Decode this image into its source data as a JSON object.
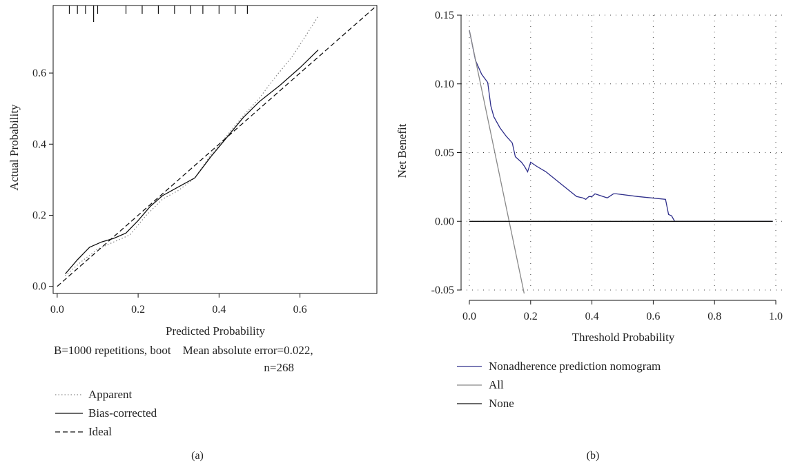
{
  "chart_data": [
    {
      "type": "line",
      "panel_label": "(a)",
      "xlabel": "Predicted Probability",
      "ylabel": "Actual Probability",
      "xlim": [
        -0.01,
        0.79
      ],
      "ylim": [
        -0.02,
        0.79
      ],
      "xticks": [
        0.0,
        0.2,
        0.4,
        0.6
      ],
      "xtick_labels": [
        "0.0",
        "0.2",
        "0.4",
        "0.6"
      ],
      "yticks": [
        0.0,
        0.2,
        0.4,
        0.6
      ],
      "ytick_labels": [
        "0.0",
        "0.2",
        "0.4",
        "0.6"
      ],
      "grid": false,
      "caption_line1": "B=1000 repetitions, boot    Mean absolute error=0.022,",
      "caption_line2": "n=268",
      "rug_x": [
        0.03,
        0.05,
        0.07,
        0.09,
        0.1,
        0.17,
        0.21,
        0.25,
        0.29,
        0.33,
        0.36,
        0.4,
        0.44,
        0.47
      ],
      "series": [
        {
          "name": "Apparent",
          "style": "dotted",
          "color": "#888888",
          "x": [
            0.02,
            0.06,
            0.1,
            0.14,
            0.18,
            0.22,
            0.26,
            0.3,
            0.34,
            0.38,
            0.42,
            0.46,
            0.5,
            0.54,
            0.58,
            0.62,
            0.645
          ],
          "y": [
            0.03,
            0.07,
            0.105,
            0.125,
            0.145,
            0.2,
            0.245,
            0.27,
            0.305,
            0.37,
            0.425,
            0.48,
            0.53,
            0.59,
            0.645,
            0.715,
            0.76
          ]
        },
        {
          "name": "Bias-corrected",
          "style": "solid",
          "color": "#111111",
          "x": [
            0.02,
            0.05,
            0.08,
            0.11,
            0.14,
            0.17,
            0.2,
            0.23,
            0.26,
            0.3,
            0.34,
            0.38,
            0.42,
            0.46,
            0.5,
            0.55,
            0.6,
            0.645
          ],
          "y": [
            0.035,
            0.075,
            0.11,
            0.125,
            0.135,
            0.15,
            0.185,
            0.225,
            0.255,
            0.28,
            0.305,
            0.365,
            0.42,
            0.475,
            0.52,
            0.565,
            0.615,
            0.665
          ]
        },
        {
          "name": "Ideal",
          "style": "dashed",
          "color": "#111111",
          "x": [
            0.0,
            0.79
          ],
          "y": [
            0.0,
            0.79
          ]
        }
      ],
      "legend": [
        "Apparent",
        "Bias-corrected",
        "Ideal"
      ],
      "legend_position": "bottom-left"
    },
    {
      "type": "line",
      "panel_label": "(b)",
      "xlabel": "Threshold Probability",
      "ylabel": "Net Benefit",
      "xlim": [
        -0.02,
        1.02
      ],
      "ylim": [
        -0.05,
        0.15
      ],
      "xticks": [
        0.0,
        0.2,
        0.4,
        0.6,
        0.8,
        1.0
      ],
      "xtick_labels": [
        "0.0",
        "0.2",
        "0.4",
        "0.6",
        "0.8",
        "1.0"
      ],
      "yticks": [
        -0.05,
        0.0,
        0.05,
        0.1,
        0.15
      ],
      "ytick_labels": [
        "-0.05",
        "0.00",
        "0.05",
        "0.10",
        "0.15"
      ],
      "grid": true,
      "series": [
        {
          "name": "Nonadherence prediction nomogram",
          "style": "solid",
          "color": "#2e2e8a",
          "x": [
            0.0,
            0.02,
            0.04,
            0.05,
            0.06,
            0.07,
            0.08,
            0.1,
            0.12,
            0.14,
            0.15,
            0.17,
            0.18,
            0.19,
            0.2,
            0.22,
            0.25,
            0.3,
            0.35,
            0.37,
            0.38,
            0.39,
            0.4,
            0.41,
            0.45,
            0.47,
            0.48,
            0.55,
            0.64,
            0.65,
            0.66,
            0.67,
            0.7,
            0.99
          ],
          "y": [
            0.139,
            0.117,
            0.107,
            0.104,
            0.101,
            0.084,
            0.076,
            0.068,
            0.062,
            0.057,
            0.047,
            0.043,
            0.04,
            0.036,
            0.043,
            0.04,
            0.036,
            0.027,
            0.018,
            0.017,
            0.016,
            0.018,
            0.018,
            0.02,
            0.017,
            0.02,
            0.02,
            0.018,
            0.016,
            0.005,
            0.004,
            0.0,
            0.0,
            0.0
          ]
        },
        {
          "name": "All",
          "style": "solid",
          "color": "#888888",
          "x": [
            0.0,
            0.184
          ],
          "y": [
            0.139,
            -0.058
          ]
        },
        {
          "name": "None",
          "style": "solid",
          "color": "#111111",
          "x": [
            0.0,
            0.99
          ],
          "y": [
            0.0,
            0.0
          ]
        }
      ],
      "legend": [
        "Nonadherence prediction nomogram",
        "All",
        "None"
      ],
      "legend_position": "bottom-left"
    }
  ]
}
